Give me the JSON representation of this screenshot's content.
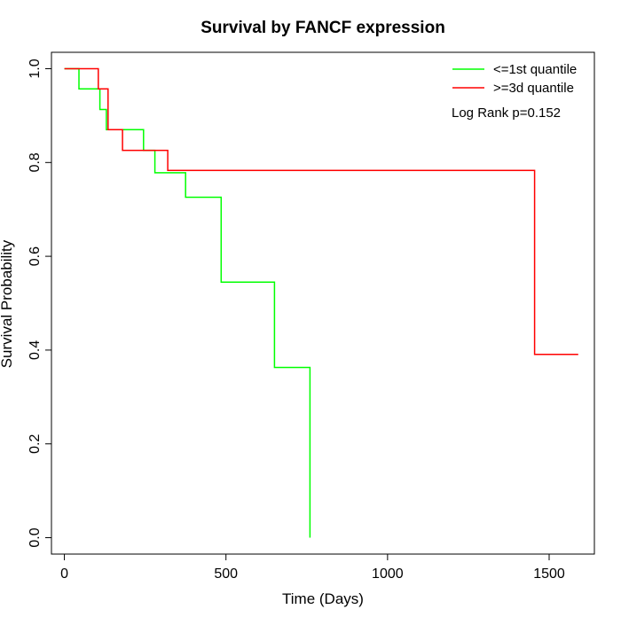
{
  "chart_data": {
    "type": "line",
    "title": "Survival by FANCF expression",
    "xlabel": "Time (Days)",
    "ylabel": "Survival Probability",
    "xlim": [
      -40,
      1640
    ],
    "ylim": [
      -0.035,
      1.035
    ],
    "xticks": [
      0,
      500,
      1000,
      1500
    ],
    "xtick_labels": [
      "0",
      "500",
      "1000",
      "1500"
    ],
    "yticks": [
      0.0,
      0.2,
      0.4,
      0.6,
      0.8,
      1.0
    ],
    "ytick_labels": [
      "0.0",
      "0.2",
      "0.4",
      "0.6",
      "0.8",
      "1.0"
    ],
    "grid": false,
    "legend_position": "top-right",
    "annotation": "Log Rank p=0.152",
    "step": true,
    "series": [
      {
        "name": "<=1st quantile",
        "color": "#00FF00",
        "x": [
          0,
          45,
          45,
          110,
          110,
          130,
          130,
          245,
          245,
          280,
          280,
          375,
          375,
          485,
          485,
          650,
          650,
          760,
          760
        ],
        "y": [
          1.0,
          1.0,
          0.957,
          0.957,
          0.913,
          0.913,
          0.87,
          0.87,
          0.826,
          0.826,
          0.778,
          0.778,
          0.726,
          0.726,
          0.545,
          0.545,
          0.363,
          0.363,
          0.0
        ]
      },
      {
        "name": ">=3d quantile",
        "color": "#FF0000",
        "x": [
          0,
          105,
          105,
          135,
          135,
          180,
          180,
          320,
          320,
          1455,
          1455,
          1590
        ],
        "y": [
          1.0,
          1.0,
          0.957,
          0.957,
          0.87,
          0.87,
          0.826,
          0.826,
          0.783,
          0.783,
          0.391,
          0.391
        ]
      }
    ]
  }
}
